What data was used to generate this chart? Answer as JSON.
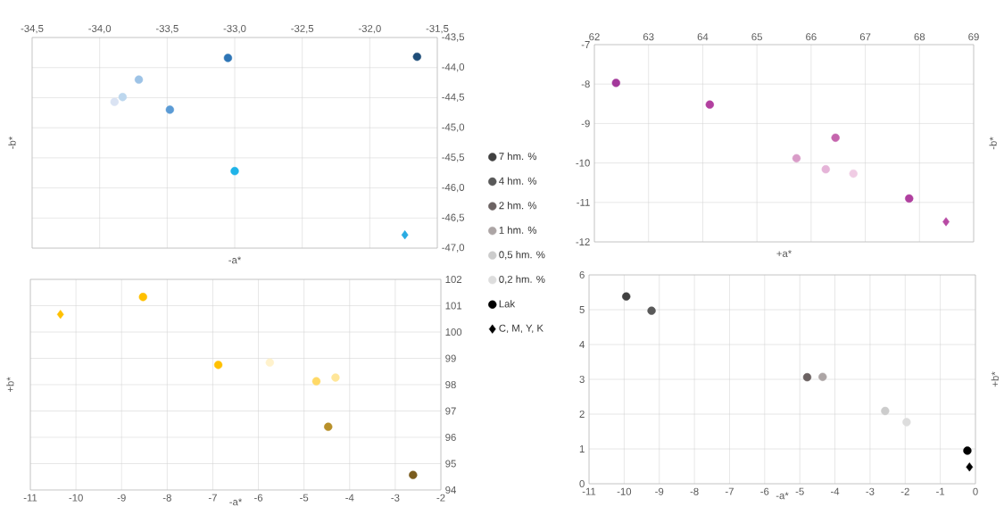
{
  "chart_data": [
    {
      "type": "scatter",
      "xlabel": "-a*",
      "ylabel": "-b*",
      "xlim": [
        -34.5,
        -31.5
      ],
      "ylim": [
        -47,
        -43.5
      ],
      "grid": true,
      "xticks": [
        {
          "value": -34.5,
          "label": "-34,5"
        },
        {
          "value": -34.0,
          "label": "-34,0"
        },
        {
          "value": -33.5,
          "label": "-33,5"
        },
        {
          "value": -33.0,
          "label": "-33,0"
        },
        {
          "value": -32.5,
          "label": "-32,5"
        },
        {
          "value": -32.0,
          "label": "-32,0"
        },
        {
          "value": -31.5,
          "label": "-31,5"
        }
      ],
      "yticks": [
        {
          "value": -43.5,
          "label": "-43,5"
        },
        {
          "value": -44.0,
          "label": "-44,0"
        },
        {
          "value": -44.5,
          "label": "-44,5"
        },
        {
          "value": -45.0,
          "label": "-45,0"
        },
        {
          "value": -45.5,
          "label": "-45,5"
        },
        {
          "value": -46.0,
          "label": "-46,0"
        },
        {
          "value": -46.5,
          "label": "-46,5"
        },
        {
          "value": -47.0,
          "label": "-47,0"
        }
      ],
      "series": [
        {
          "color": "#1f4e79",
          "x": [
            -31.65
          ],
          "values": [
            -43.82
          ],
          "marker": "circle"
        },
        {
          "color": "#2e75b6",
          "x": [
            -33.05
          ],
          "values": [
            -43.84
          ],
          "marker": "circle"
        },
        {
          "color": "#5b9bd5",
          "x": [
            -33.48
          ],
          "values": [
            -44.7
          ],
          "marker": "circle"
        },
        {
          "color": "#9dc3e6",
          "x": [
            -33.71
          ],
          "values": [
            -44.2
          ],
          "marker": "circle"
        },
        {
          "color": "#bdd7ee",
          "x": [
            -33.83
          ],
          "values": [
            -44.49
          ],
          "marker": "circle"
        },
        {
          "color": "#dae3f3",
          "x": [
            -33.89
          ],
          "values": [
            -44.57
          ],
          "marker": "circle"
        },
        {
          "color": "#1fb3e8",
          "x": [
            -33.0
          ],
          "values": [
            -45.72
          ],
          "marker": "circle"
        },
        {
          "color": "#29abe2",
          "x": [
            -31.74
          ],
          "values": [
            -46.78
          ],
          "marker": "diamond"
        }
      ]
    },
    {
      "type": "scatter",
      "xlabel": "+a*",
      "ylabel": "-b*",
      "xlim": [
        62,
        69
      ],
      "ylim": [
        -12,
        -7
      ],
      "grid": true,
      "xticks": [
        62,
        63,
        64,
        65,
        66,
        67,
        68,
        69
      ],
      "yticks": [
        -12,
        -11,
        -10,
        -9,
        -8,
        -7
      ],
      "series": [
        {
          "color": "#a3389b",
          "x": [
            62.4
          ],
          "values": [
            -7.97
          ],
          "marker": "circle"
        },
        {
          "color": "#b2409f",
          "x": [
            64.13
          ],
          "values": [
            -8.52
          ],
          "marker": "circle"
        },
        {
          "color": "#c565ad",
          "x": [
            66.45
          ],
          "values": [
            -9.36
          ],
          "marker": "circle"
        },
        {
          "color": "#d99cc8",
          "x": [
            65.73
          ],
          "values": [
            -9.88
          ],
          "marker": "circle"
        },
        {
          "color": "#e5b4d8",
          "x": [
            66.27
          ],
          "values": [
            -10.16
          ],
          "marker": "circle"
        },
        {
          "color": "#f0cce4",
          "x": [
            66.78
          ],
          "values": [
            -10.27
          ],
          "marker": "circle"
        },
        {
          "color": "#b0409f",
          "x": [
            67.81
          ],
          "values": [
            -10.9
          ],
          "marker": "circle"
        },
        {
          "color": "#b84aa4",
          "x": [
            68.49
          ],
          "values": [
            -11.49
          ],
          "marker": "diamond"
        }
      ]
    },
    {
      "type": "scatter",
      "xlabel": "-a*",
      "ylabel": "+b*",
      "xlim": [
        -11,
        -2
      ],
      "ylim": [
        94,
        102
      ],
      "grid": true,
      "xticks": [
        -11,
        -10,
        -9,
        -8,
        -7,
        -6,
        -5,
        -4,
        -3,
        -2
      ],
      "yticks": [
        94,
        95,
        96,
        97,
        98,
        99,
        100,
        101,
        102
      ],
      "series": [
        {
          "color": "#7a5c1e",
          "x": [
            -2.61
          ],
          "values": [
            94.57
          ],
          "marker": "circle"
        },
        {
          "color": "#b8902a",
          "x": [
            -4.47
          ],
          "values": [
            96.4
          ],
          "marker": "circle"
        },
        {
          "color": "#ffc000",
          "x": [
            -6.88
          ],
          "values": [
            98.75
          ],
          "marker": "circle"
        },
        {
          "color": "#ffd966",
          "x": [
            -4.73
          ],
          "values": [
            98.13
          ],
          "marker": "circle"
        },
        {
          "color": "#ffe699",
          "x": [
            -4.31
          ],
          "values": [
            98.27
          ],
          "marker": "circle"
        },
        {
          "color": "#fff2cc",
          "x": [
            -5.75
          ],
          "values": [
            98.84
          ],
          "marker": "circle"
        },
        {
          "color": "#ffc000",
          "x": [
            -8.53
          ],
          "values": [
            101.33
          ],
          "marker": "circle"
        },
        {
          "color": "#ffc000",
          "x": [
            -10.34
          ],
          "values": [
            100.67
          ],
          "marker": "diamond"
        }
      ]
    },
    {
      "type": "scatter",
      "xlabel": "-a*",
      "ylabel": "+b*",
      "xlim": [
        -11,
        0
      ],
      "ylim": [
        0,
        6
      ],
      "grid": true,
      "legend": "left",
      "xticks": [
        -11,
        -10,
        -9,
        -8,
        -7,
        -6,
        -5,
        -4,
        -3,
        -2,
        -1,
        0
      ],
      "yticks": [
        0,
        1,
        2,
        3,
        4,
        5,
        6
      ],
      "series": [
        {
          "name": "7 hm. %",
          "color": "#404040",
          "x": [
            -9.94
          ],
          "values": [
            5.38
          ],
          "marker": "circle"
        },
        {
          "name": "4 hm. %",
          "color": "#595959",
          "x": [
            -9.22
          ],
          "values": [
            4.97
          ],
          "marker": "circle"
        },
        {
          "name": "2 hm. %",
          "color": "#6b6262",
          "x": [
            -4.79
          ],
          "values": [
            3.06
          ],
          "marker": "circle"
        },
        {
          "name": "1 hm. %",
          "color": "#aca5a5",
          "x": [
            -4.35
          ],
          "values": [
            3.07
          ],
          "marker": "circle"
        },
        {
          "name": "0,5 hm. %",
          "color": "#cccccc",
          "x": [
            -2.57
          ],
          "values": [
            2.09
          ],
          "marker": "circle"
        },
        {
          "name": "0,2 hm. %",
          "color": "#dddddd",
          "x": [
            -1.96
          ],
          "values": [
            1.77
          ],
          "marker": "circle"
        },
        {
          "name": "Lak",
          "color": "#000000",
          "x": [
            -0.23
          ],
          "values": [
            0.95
          ],
          "marker": "circle"
        },
        {
          "name": "C, M, Y, K",
          "color": "#000000",
          "x": [
            -0.17
          ],
          "values": [
            0.48
          ],
          "marker": "diamond"
        }
      ]
    }
  ]
}
